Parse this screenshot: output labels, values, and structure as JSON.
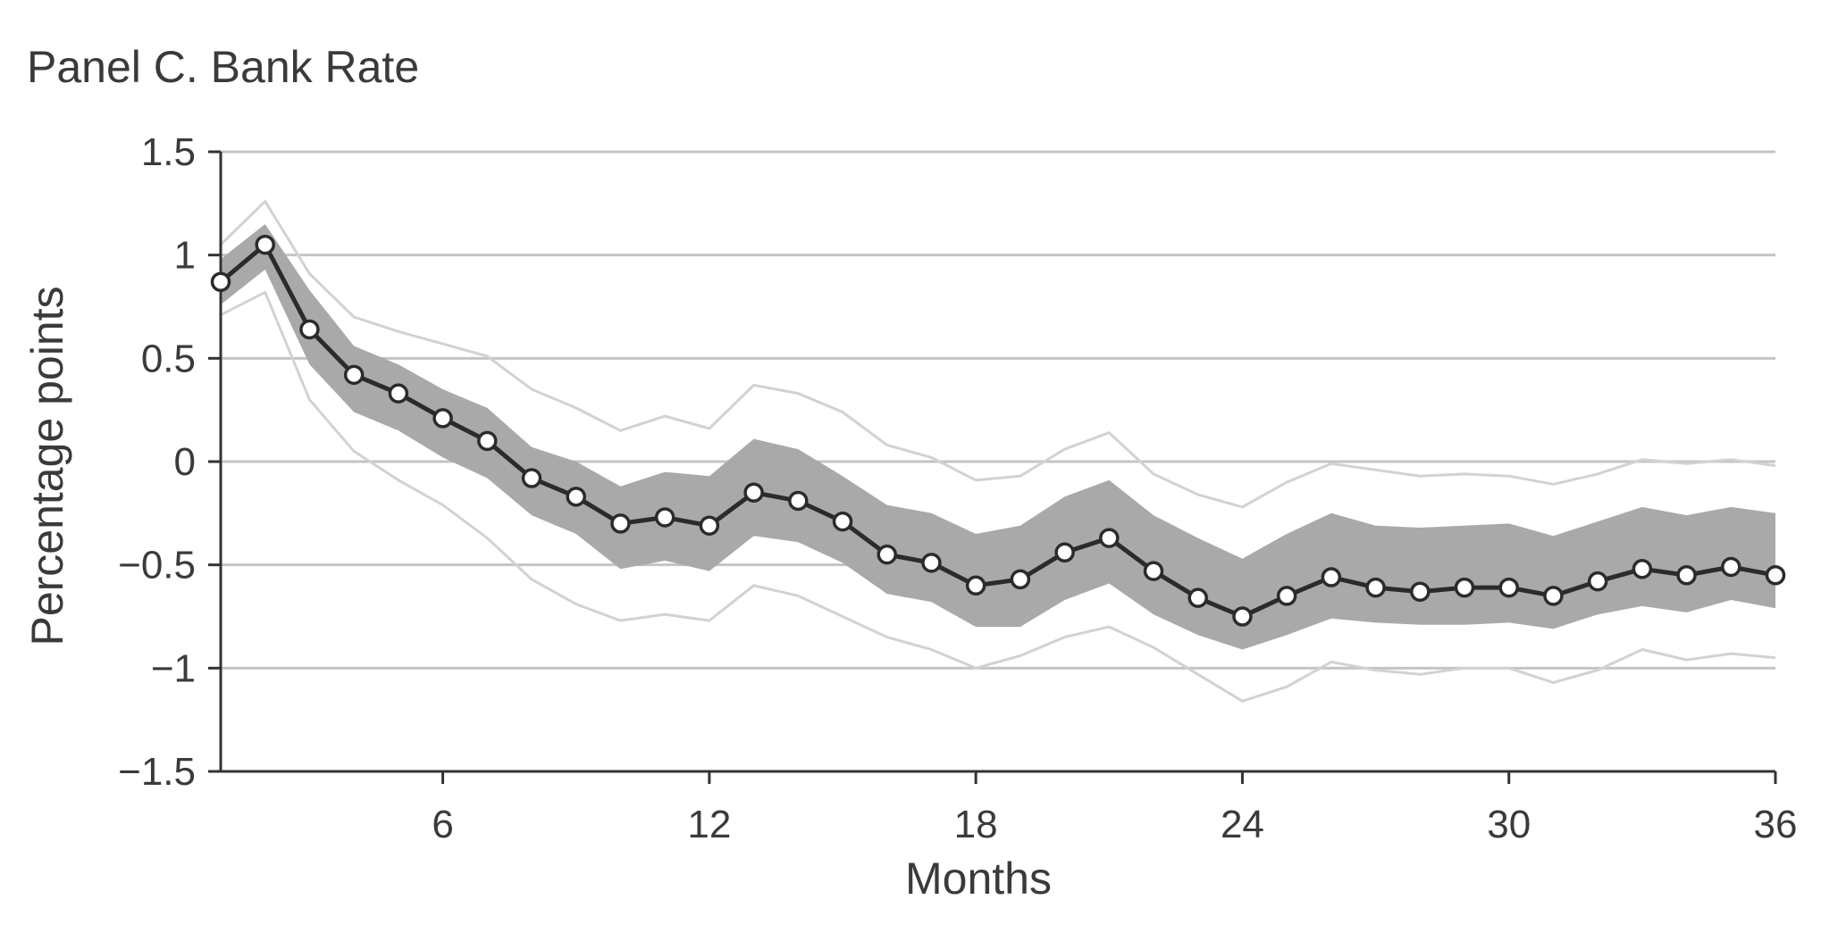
{
  "chart_data": {
    "type": "line",
    "title": "Panel C. Bank Rate",
    "xlabel": "Months",
    "ylabel": "Percentage points",
    "xlim": [
      1,
      36
    ],
    "ylim": [
      -1.5,
      1.5
    ],
    "xticks": [
      6,
      12,
      18,
      24,
      30,
      36
    ],
    "xtick_labels": [
      "6",
      "12",
      "18",
      "24",
      "30",
      "36"
    ],
    "yticks": [
      1.5,
      1,
      0.5,
      0,
      -0.5,
      -1,
      -1.5
    ],
    "ytick_labels": [
      "1.5",
      "1",
      "0.5",
      "0",
      "−0.5",
      "−1",
      "−1.5"
    ],
    "grid": "horizontal",
    "x": [
      1,
      2,
      3,
      4,
      5,
      6,
      7,
      8,
      9,
      10,
      11,
      12,
      13,
      14,
      15,
      16,
      17,
      18,
      19,
      20,
      21,
      22,
      23,
      24,
      25,
      26,
      27,
      28,
      29,
      30,
      31,
      32,
      33,
      34,
      35,
      36
    ],
    "series": [
      {
        "role": "point estimate",
        "values": [
          0.87,
          1.05,
          0.64,
          0.42,
          0.33,
          0.21,
          0.1,
          -0.08,
          -0.17,
          -0.3,
          -0.27,
          -0.31,
          -0.15,
          -0.19,
          -0.29,
          -0.45,
          -0.49,
          -0.6,
          -0.57,
          -0.44,
          -0.37,
          -0.53,
          -0.66,
          -0.75,
          -0.65,
          -0.56,
          -0.61,
          -0.63,
          -0.61,
          -0.61,
          -0.65,
          -0.58,
          -0.52,
          -0.55,
          -0.51,
          -0.55
        ]
      },
      {
        "role": "inner band upper",
        "values": [
          0.98,
          1.15,
          0.83,
          0.56,
          0.47,
          0.35,
          0.26,
          0.07,
          0.0,
          -0.12,
          -0.05,
          -0.07,
          0.11,
          0.06,
          -0.07,
          -0.21,
          -0.25,
          -0.35,
          -0.31,
          -0.17,
          -0.09,
          -0.26,
          -0.37,
          -0.47,
          -0.35,
          -0.25,
          -0.31,
          -0.32,
          -0.31,
          -0.3,
          -0.36,
          -0.29,
          -0.22,
          -0.26,
          -0.22,
          -0.25
        ]
      },
      {
        "role": "inner band lower",
        "values": [
          0.76,
          0.93,
          0.47,
          0.24,
          0.15,
          0.02,
          -0.08,
          -0.26,
          -0.35,
          -0.52,
          -0.48,
          -0.53,
          -0.36,
          -0.39,
          -0.49,
          -0.64,
          -0.68,
          -0.8,
          -0.8,
          -0.67,
          -0.59,
          -0.74,
          -0.84,
          -0.91,
          -0.84,
          -0.76,
          -0.78,
          -0.79,
          -0.79,
          -0.78,
          -0.81,
          -0.74,
          -0.7,
          -0.73,
          -0.67,
          -0.71
        ]
      },
      {
        "role": "outer band upper",
        "values": [
          1.05,
          1.26,
          0.91,
          0.7,
          0.63,
          0.57,
          0.51,
          0.35,
          0.26,
          0.15,
          0.22,
          0.16,
          0.37,
          0.33,
          0.24,
          0.08,
          0.02,
          -0.09,
          -0.07,
          0.06,
          0.14,
          -0.06,
          -0.16,
          -0.22,
          -0.1,
          -0.01,
          -0.04,
          -0.07,
          -0.06,
          -0.07,
          -0.11,
          -0.06,
          0.01,
          -0.01,
          0.01,
          -0.02
        ]
      },
      {
        "role": "outer band lower",
        "values": [
          0.71,
          0.82,
          0.3,
          0.05,
          -0.09,
          -0.21,
          -0.37,
          -0.57,
          -0.69,
          -0.77,
          -0.74,
          -0.77,
          -0.6,
          -0.65,
          -0.75,
          -0.85,
          -0.91,
          -1.0,
          -0.94,
          -0.85,
          -0.8,
          -0.9,
          -1.03,
          -1.16,
          -1.09,
          -0.97,
          -1.01,
          -1.03,
          -1.0,
          -1.0,
          -1.07,
          -1.01,
          -0.91,
          -0.96,
          -0.93,
          -0.95
        ]
      }
    ],
    "colors": {
      "estimate_line": "#2b2b2b",
      "marker_stroke": "#2b2b2b",
      "marker_fill": "#ffffff",
      "inner_band": "#a9a9a9",
      "outer_band": "#d2d2d2",
      "grid": "#c4c4c4",
      "axis": "#333333",
      "text": "#3a3a3a"
    }
  }
}
